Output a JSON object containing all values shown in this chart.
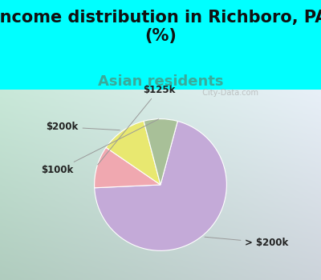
{
  "title": "Income distribution in Richboro, PA\n(%)",
  "subtitle": "Asian residents",
  "title_fontsize": 15,
  "subtitle_fontsize": 13,
  "title_color": "#111111",
  "subtitle_color": "#3aaa9a",
  "bg_color_top": "#00ffff",
  "chart_bg_left": "#c8e8d8",
  "chart_bg_right": "#e8f0f8",
  "slices": [
    {
      "label": "> $200k",
      "value": 68,
      "color": "#c4aad8"
    },
    {
      "label": "$125k",
      "value": 10,
      "color": "#f0a8b0"
    },
    {
      "label": "$200k",
      "value": 11,
      "color": "#e8e870"
    },
    {
      "label": "$100k",
      "value": 8,
      "color": "#a8c098"
    }
  ],
  "watermark": "  City-Data.com",
  "label_fontsize": 8.5,
  "label_color": "#222222"
}
